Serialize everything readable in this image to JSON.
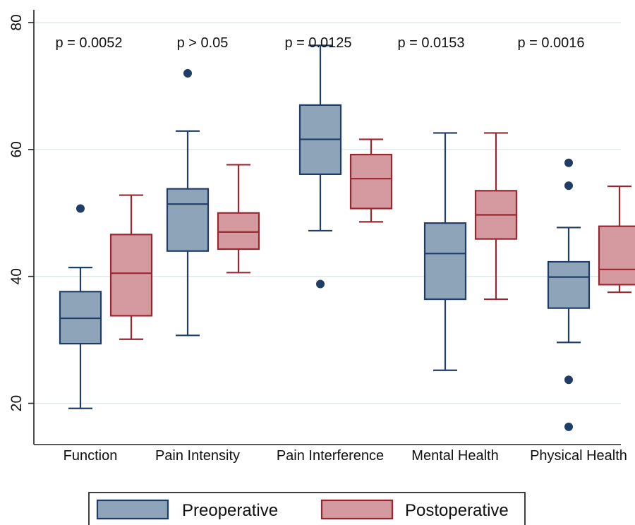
{
  "chart_data": {
    "type": "box",
    "categories": [
      "Function",
      "Pain Intensity",
      "Pain Interference",
      "Mental Health",
      "Physical Health"
    ],
    "yticks": [
      20,
      40,
      60,
      80
    ],
    "ylim": [
      13.5,
      82
    ],
    "grid": true,
    "title": "",
    "xlabel": "",
    "ylabel": "",
    "annotations": [
      "p = 0.0052",
      "p > 0.05",
      "p = 0.0125",
      "p = 0.0153",
      "p = 0.0016"
    ],
    "legend": {
      "position": "bottom",
      "entries": [
        "Preoperative",
        "Postoperative"
      ]
    },
    "series": [
      {
        "name": "Preoperative",
        "fill": "#8ea4b9",
        "stroke": "#1f3d66",
        "boxes": [
          {
            "min": 19.2,
            "q1": 29.4,
            "median": 33.4,
            "q3": 37.6,
            "max": 41.4,
            "outliers": [
              50.7
            ]
          },
          {
            "min": 30.7,
            "q1": 44.0,
            "median": 51.4,
            "q3": 53.8,
            "max": 62.9,
            "outliers": [
              72.0
            ]
          },
          {
            "min": 47.2,
            "q1": 56.1,
            "median": 61.6,
            "q3": 67.0,
            "max": 76.4,
            "outliers": [
              38.8
            ]
          },
          {
            "min": 25.2,
            "q1": 36.4,
            "median": 43.6,
            "q3": 48.4,
            "max": 62.6,
            "outliers": []
          },
          {
            "min": 29.6,
            "q1": 35.0,
            "median": 39.9,
            "q3": 42.3,
            "max": 47.7,
            "outliers": [
              57.9,
              54.3,
              23.7,
              16.3
            ]
          }
        ]
      },
      {
        "name": "Postoperative",
        "fill": "#d49aa0",
        "stroke": "#9a2630",
        "boxes": [
          {
            "min": 30.1,
            "q1": 33.8,
            "median": 40.5,
            "q3": 46.6,
            "max": 52.8,
            "outliers": []
          },
          {
            "min": 40.6,
            "q1": 44.3,
            "median": 47.0,
            "q3": 50.0,
            "max": 57.6,
            "outliers": []
          },
          {
            "min": 48.6,
            "q1": 50.7,
            "median": 55.4,
            "q3": 59.2,
            "max": 61.6,
            "outliers": []
          },
          {
            "min": 36.4,
            "q1": 45.9,
            "median": 49.7,
            "q3": 53.5,
            "max": 62.6,
            "outliers": []
          },
          {
            "min": 37.5,
            "q1": 38.7,
            "median": 41.1,
            "q3": 47.9,
            "max": 54.2,
            "outliers": []
          }
        ]
      }
    ]
  }
}
